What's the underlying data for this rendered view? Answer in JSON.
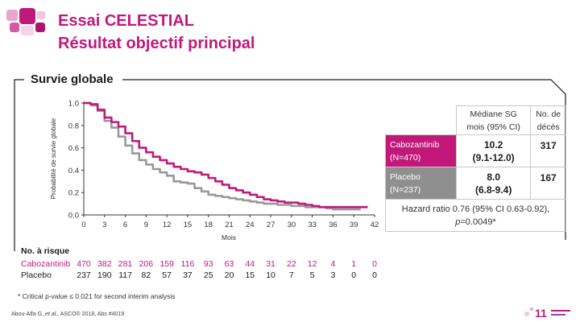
{
  "header": {
    "title": "Essai CELESTIAL",
    "subtitle": "Résultat objectif principal"
  },
  "section_title": "Survie globale",
  "chart_data": {
    "type": "line",
    "title": "",
    "xlabel": "Mois",
    "ylabel": "Probabilité de survie globale",
    "xlim": [
      0,
      42
    ],
    "ylim": [
      0,
      1.0
    ],
    "xticks": [
      0,
      3,
      6,
      9,
      12,
      15,
      18,
      21,
      24,
      27,
      30,
      33,
      36,
      39,
      42
    ],
    "yticks": [
      "0.0",
      "0.2",
      "0.4",
      "0.6",
      "0.8",
      "1.0"
    ],
    "grid": false,
    "colors": {
      "cabozantinib": "#c2187a",
      "placebo": "#999999"
    },
    "series": [
      {
        "name": "Cabozantinib",
        "x": [
          0,
          1,
          2,
          3,
          4,
          5,
          6,
          7,
          8,
          9,
          10,
          11,
          12,
          13,
          14,
          15,
          16,
          17,
          18,
          19,
          20,
          21,
          22,
          23,
          24,
          25,
          26,
          27,
          28,
          29,
          30,
          31,
          32,
          33,
          34,
          35,
          36,
          37,
          38,
          39,
          40,
          41
        ],
        "y": [
          1.0,
          0.99,
          0.94,
          0.87,
          0.83,
          0.79,
          0.73,
          0.66,
          0.6,
          0.56,
          0.52,
          0.49,
          0.46,
          0.43,
          0.41,
          0.39,
          0.38,
          0.36,
          0.33,
          0.3,
          0.27,
          0.24,
          0.22,
          0.2,
          0.18,
          0.16,
          0.14,
          0.13,
          0.12,
          0.11,
          0.11,
          0.1,
          0.09,
          0.08,
          0.07,
          0.07,
          0.07,
          0.07,
          0.07,
          0.07,
          0.07,
          0.07
        ]
      },
      {
        "name": "Placebo",
        "x": [
          0,
          1,
          2,
          3,
          4,
          5,
          6,
          7,
          8,
          9,
          10,
          11,
          12,
          13,
          14,
          15,
          16,
          17,
          18,
          19,
          20,
          21,
          22,
          23,
          24,
          25,
          26,
          27,
          28,
          29,
          30,
          31,
          32,
          33,
          34,
          35,
          36,
          37,
          38,
          39,
          40
        ],
        "y": [
          1.0,
          0.98,
          0.93,
          0.84,
          0.78,
          0.7,
          0.62,
          0.55,
          0.49,
          0.45,
          0.41,
          0.38,
          0.35,
          0.3,
          0.29,
          0.28,
          0.24,
          0.21,
          0.18,
          0.17,
          0.16,
          0.15,
          0.14,
          0.13,
          0.12,
          0.11,
          0.1,
          0.1,
          0.09,
          0.09,
          0.08,
          0.08,
          0.07,
          0.07,
          0.07,
          0.06,
          0.05,
          0.05,
          0.05,
          0.05,
          0.05
        ]
      }
    ]
  },
  "table": {
    "header_col1": "Médiane SG",
    "header_col1b": "mois (95% CI)",
    "header_col2": "No. de",
    "header_col2b": "décès",
    "rows": [
      {
        "label": "Cabozantinib",
        "label_n": "(N=470)",
        "median": "10.2",
        "ci": "(9.1-12.0)",
        "deaths": "317"
      },
      {
        "label": "Placebo",
        "label_n": "(N=237)",
        "median": "8.0",
        "ci": "(6.8-9.4)",
        "deaths": "167"
      }
    ],
    "hazard_line1": "Hazard ratio 0.76 (95% CI 0.63-0.92),",
    "hazard_p": "p",
    "hazard_line2": "=0.0049*"
  },
  "risk": {
    "title": "No. à risque",
    "cabo_label": "Cabozantinib",
    "placebo_label": "Placebo",
    "cabo": [
      "470",
      "382",
      "281",
      "206",
      "159",
      "116",
      "93",
      "63",
      "44",
      "31",
      "22",
      "12",
      "4",
      "1",
      "0"
    ],
    "placebo": [
      "237",
      "190",
      "117",
      "82",
      "57",
      "37",
      "25",
      "20",
      "15",
      "10",
      "7",
      "5",
      "3",
      "0",
      "0"
    ]
  },
  "footnote": "* Critical p-value ≤ 0.021 for second interim analysis",
  "reference": {
    "author": "Abou-Alfa G, ",
    "etal": "et al.",
    "rest": ", ASCO® 2018, Abs #4019"
  }
}
